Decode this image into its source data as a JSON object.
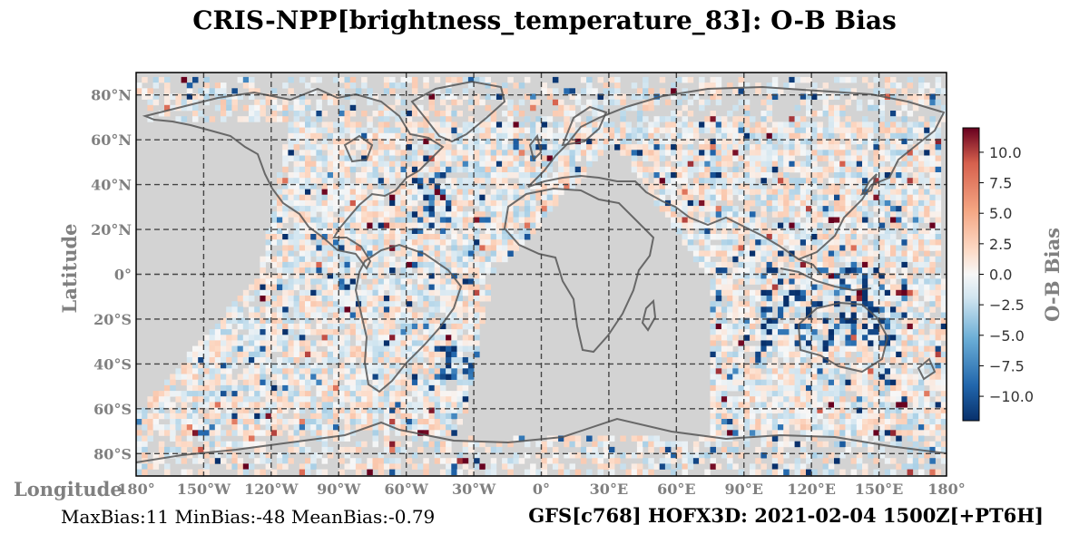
{
  "title": "CRIS-NPP[brightness_temperature_83]: O-B Bias",
  "chart_data": {
    "type": "heatmap",
    "projection": "plate-carree",
    "title": "CRIS-NPP[brightness_temperature_83]: O-B Bias",
    "xlabel": "Longitude",
    "ylabel": "Latitude",
    "xlim": [
      -180,
      180
    ],
    "ylim": [
      -90,
      90
    ],
    "x_ticks": [
      "180°",
      "150°W",
      "120°W",
      "90°W",
      "60°W",
      "30°W",
      "0°",
      "30°E",
      "60°E",
      "90°E",
      "120°E",
      "150°E",
      "180°"
    ],
    "y_ticks": [
      "80°N",
      "60°N",
      "40°N",
      "20°N",
      "0°",
      "20°S",
      "40°S",
      "60°S",
      "80°S"
    ],
    "grid": true,
    "colorbar": {
      "label": "O-B Bias",
      "colormap": "RdBu_r",
      "range": [
        -12,
        12
      ],
      "ticks": [
        "10.0",
        "7.5",
        "5.0",
        "2.5",
        "0.0",
        "−2.5",
        "−5.0",
        "−7.5",
        "−10.0"
      ]
    },
    "stats": {
      "max_bias": 11,
      "min_bias": -48,
      "mean_bias": -0.79
    }
  },
  "footer": {
    "stats_text": "MaxBias:11 MinBias:-48 MeanBias:-0.79",
    "run_text": "GFS[c768] HOFX3D: 2021-02-04 1500Z[+PT6H]"
  },
  "colors": {
    "background_gray": "#d3d3d3",
    "coastline": "#555555",
    "grid": "#444444",
    "cmap_min": "#08306b",
    "cmap_mid": "#f7f7f7",
    "cmap_max": "#67001f"
  }
}
